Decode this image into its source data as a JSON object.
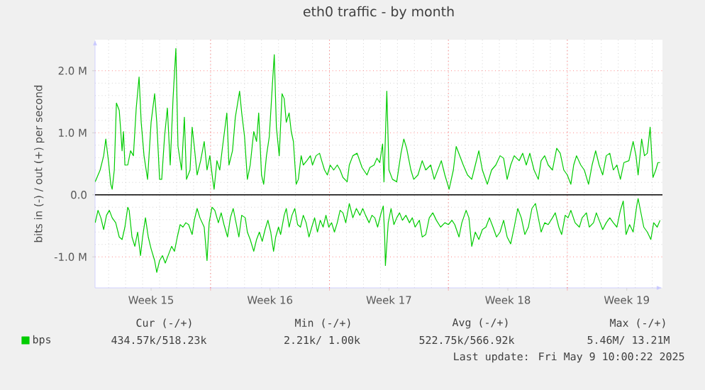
{
  "chart_data": {
    "type": "line",
    "title": "eth0 traffic - by month",
    "ylabel": "bits in (-) / out (+) per second",
    "xlim": [
      "2025-04-06T04:48",
      "2025-05-09T14:24"
    ],
    "ylim": [
      -1.5,
      2.5
    ],
    "xticks": [
      {
        "value": "2025-04-09T12:00",
        "label": "Week 15"
      },
      {
        "value": "2025-04-13",
        "label": null
      },
      {
        "value": "2025-04-16T12:00",
        "label": "Week 16"
      },
      {
        "value": "2025-04-20",
        "label": null
      },
      {
        "value": "2025-04-23T12:00",
        "label": "Week 17"
      },
      {
        "value": "2025-04-27",
        "label": null
      },
      {
        "value": "2025-04-30T12:00",
        "label": "Week 18"
      },
      {
        "value": "2025-05-04",
        "label": null
      },
      {
        "value": "2025-05-07T12:00",
        "label": "Week 19"
      }
    ],
    "yticks": [
      {
        "value": -1,
        "label": "-1.0 M"
      },
      {
        "value": 0,
        "label": "0.0"
      },
      {
        "value": 1,
        "label": "1.0 M"
      },
      {
        "value": 2,
        "label": "2.0 M"
      }
    ],
    "grid": true,
    "legend": "bottom",
    "ref_lines": [
      {
        "axis": "y",
        "value": 0,
        "color": "#000000"
      }
    ],
    "annotations": [
      "Cur (-/+)",
      "Min (-/+)",
      "Avg (-/+)",
      "Max (-/+)",
      "434.57k/518.23k",
      "2.21k/ 1.00k",
      "522.75k/566.92k",
      "5.46M/ 13.21M",
      "Last update: Fri May 9 10:00:22 2025"
    ],
    "series": [
      {
        "name": "bps",
        "color": "#00cc00",
        "x": [
          "2025-04-06T05:00",
          "2025-04-06T12:00",
          "2025-04-06T17:00",
          "2025-04-06T20:00",
          "2025-04-07T00:00",
          "2025-04-07T03:00",
          "2025-04-07T05:00",
          "2025-04-07T08:00",
          "2025-04-07T11:00",
          "2025-04-07T15:00",
          "2025-04-07T17:00",
          "2025-04-07T19:00",
          "2025-04-07T21:00",
          "2025-04-07T23:00",
          "2025-04-08T03:00",
          "2025-04-08T07:00",
          "2025-04-08T11:00",
          "2025-04-08T15:00",
          "2025-04-08T19:00",
          "2025-04-08T22:00",
          "2025-04-09T02:00",
          "2025-04-09T07:00",
          "2025-04-09T12:00",
          "2025-04-09T17:00",
          "2025-04-09T20:00",
          "2025-04-10T00:00",
          "2025-04-10T03:00",
          "2025-04-10T07:00",
          "2025-04-10T11:00",
          "2025-04-10T15:00",
          "2025-04-10T19:00",
          "2025-04-10T23:00",
          "2025-04-11T02:00",
          "2025-04-11T07:00",
          "2025-04-11T11:00",
          "2025-04-11T14:00",
          "2025-04-11T19:00",
          "2025-04-11T22:00",
          "2025-04-12T01:00",
          "2025-04-12T05:00",
          "2025-04-12T10:00",
          "2025-04-12T15:00",
          "2025-04-12T19:00",
          "2025-04-12T23:00",
          "2025-04-13T03:00",
          "2025-04-13T05:00",
          "2025-04-13T09:00",
          "2025-04-13T13:00",
          "2025-04-13T17:00",
          "2025-04-13T23:00",
          "2025-04-14T02:00",
          "2025-04-14T07:00",
          "2025-04-14T11:00",
          "2025-04-14T17:00",
          "2025-04-14T20:00",
          "2025-04-15T00:00",
          "2025-04-15T04:00",
          "2025-04-15T08:00",
          "2025-04-15T13:00",
          "2025-04-15T17:00",
          "2025-04-15T20:00",
          "2025-04-16T00:00",
          "2025-04-16T03:00",
          "2025-04-16T07:00",
          "2025-04-16T11:00",
          "2025-04-16T15:00",
          "2025-04-16T18:00",
          "2025-04-16T21:00",
          "2025-04-17T01:00",
          "2025-04-17T05:00",
          "2025-04-17T08:00",
          "2025-04-17T11:00",
          "2025-04-17T15:00",
          "2025-04-17T18:00",
          "2025-04-17T21:00",
          "2025-04-18T01:00",
          "2025-04-18T04:00",
          "2025-04-18T08:00",
          "2025-04-18T11:00",
          "2025-04-18T16:00",
          "2025-04-18T21:00",
          "2025-04-19T00:00",
          "2025-04-19T05:00",
          "2025-04-19T10:00",
          "2025-04-19T13:00",
          "2025-04-19T17:00",
          "2025-04-19T21:00",
          "2025-04-20T01:00",
          "2025-04-20T06:00",
          "2025-04-20T11:00",
          "2025-04-20T15:00",
          "2025-04-20T19:00",
          "2025-04-21T01:00",
          "2025-04-21T04:00",
          "2025-04-21T09:00",
          "2025-04-21T15:00",
          "2025-04-21T22:00",
          "2025-04-22T05:00",
          "2025-04-22T09:00",
          "2025-04-22T15:00",
          "2025-04-22T19:00",
          "2025-04-22T23:00",
          "2025-04-23T03:00",
          "2025-04-23T05:00",
          "2025-04-23T09:00",
          "2025-04-23T12:00",
          "2025-04-23T17:00",
          "2025-04-23T23:00",
          "2025-04-24T05:00",
          "2025-04-24T09:00",
          "2025-04-24T13:00",
          "2025-04-24T19:00",
          "2025-04-24T23:00",
          "2025-04-25T05:00",
          "2025-04-25T11:00",
          "2025-04-25T16:00",
          "2025-04-25T23:00",
          "2025-04-26T04:00",
          "2025-04-26T09:00",
          "2025-04-26T14:00",
          "2025-04-26T19:00",
          "2025-04-27T01:00",
          "2025-04-27T07:00",
          "2025-04-27T11:00",
          "2025-04-27T16:00",
          "2025-04-27T21:00",
          "2025-04-28T03:00",
          "2025-04-28T09:00",
          "2025-04-28T14:00",
          "2025-04-28T19:00",
          "2025-04-29T00:00",
          "2025-04-29T07:00",
          "2025-04-29T13:00",
          "2025-04-29T19:00",
          "2025-04-30T01:00",
          "2025-04-30T06:00",
          "2025-04-30T11:00",
          "2025-04-30T16:00",
          "2025-04-30T21:00",
          "2025-05-01T04:00",
          "2025-05-01T09:00",
          "2025-05-01T14:00",
          "2025-05-01T19:00",
          "2025-05-02T01:00",
          "2025-05-02T07:00",
          "2025-05-02T11:00",
          "2025-05-02T16:00",
          "2025-05-02T21:00",
          "2025-05-03T03:00",
          "2025-05-03T09:00",
          "2025-05-03T14:00",
          "2025-05-03T19:00",
          "2025-05-04T00:00",
          "2025-05-04T05:00",
          "2025-05-04T09:00",
          "2025-05-04T13:00",
          "2025-05-04T19:00",
          "2025-05-05T00:00",
          "2025-05-05T06:00",
          "2025-05-05T11:00",
          "2025-05-05T16:00",
          "2025-05-05T21:00",
          "2025-05-06T02:00",
          "2025-05-06T07:00",
          "2025-05-06T12:00",
          "2025-05-06T17:00",
          "2025-05-06T22:00",
          "2025-05-07T03:00",
          "2025-05-07T08:00",
          "2025-05-07T15:00",
          "2025-05-07T21:00",
          "2025-05-08T01:00",
          "2025-05-08T04:00",
          "2025-05-08T09:00",
          "2025-05-08T13:00",
          "2025-05-08T17:00",
          "2025-05-08T21:00",
          "2025-05-09T01:00",
          "2025-05-09T05:00",
          "2025-05-09T08:00",
          "2025-05-09T11:00"
        ],
        "values": [
          0.21,
          0.4,
          0.63,
          0.9,
          0.52,
          0.17,
          0.09,
          0.4,
          1.48,
          1.36,
          1.05,
          0.71,
          1.02,
          0.48,
          0.48,
          0.71,
          0.63,
          1.4,
          1.9,
          1.17,
          0.63,
          0.25,
          1.17,
          1.63,
          1.17,
          0.25,
          0.25,
          0.94,
          1.4,
          0.48,
          1.55,
          2.36,
          0.78,
          0.4,
          1.25,
          0.25,
          0.4,
          1.09,
          0.78,
          0.32,
          0.55,
          0.86,
          0.4,
          0.63,
          0.25,
          0.09,
          0.55,
          0.4,
          0.78,
          1.32,
          0.48,
          0.71,
          1.25,
          1.67,
          1.32,
          0.94,
          0.25,
          0.48,
          1.02,
          0.86,
          1.32,
          0.32,
          0.17,
          0.63,
          0.94,
          1.71,
          2.26,
          1.09,
          0.63,
          1.63,
          1.55,
          1.17,
          1.32,
          1.02,
          0.86,
          0.17,
          0.25,
          0.63,
          0.48,
          0.55,
          0.63,
          0.48,
          0.63,
          0.67,
          0.55,
          0.4,
          0.32,
          0.48,
          0.4,
          0.48,
          0.4,
          0.28,
          0.21,
          0.48,
          0.63,
          0.67,
          0.44,
          0.32,
          0.44,
          0.48,
          0.59,
          0.52,
          0.82,
          0.21,
          1.67,
          0.4,
          0.25,
          0.21,
          0.67,
          0.9,
          0.75,
          0.4,
          0.25,
          0.32,
          0.55,
          0.4,
          0.48,
          0.25,
          0.4,
          0.55,
          0.32,
          0.09,
          0.4,
          0.78,
          0.63,
          0.48,
          0.32,
          0.25,
          0.48,
          0.71,
          0.4,
          0.17,
          0.4,
          0.48,
          0.63,
          0.59,
          0.25,
          0.48,
          0.63,
          0.55,
          0.67,
          0.48,
          0.67,
          0.4,
          0.25,
          0.55,
          0.63,
          0.48,
          0.4,
          0.75,
          0.67,
          0.4,
          0.32,
          0.17,
          0.48,
          0.63,
          0.48,
          0.4,
          0.17,
          0.48,
          0.71,
          0.48,
          0.32,
          0.63,
          0.67,
          0.4,
          0.48,
          0.25,
          0.52,
          0.55,
          0.86,
          0.63,
          0.32,
          0.9,
          0.63,
          0.67,
          1.09,
          0.28,
          0.4,
          0.52,
          0.52
        ]
      },
      {
        "color": "#00cc00",
        "x": [
          "2025-04-06T05:00",
          "2025-04-06T09:00",
          "2025-04-06T13:00",
          "2025-04-06T17:00",
          "2025-04-06T21:00",
          "2025-04-07T01:00",
          "2025-04-07T05:00",
          "2025-04-07T10:00",
          "2025-04-07T15:00",
          "2025-04-07T19:00",
          "2025-04-07T23:00",
          "2025-04-08T03:00",
          "2025-04-08T05:00",
          "2025-04-08T09:00",
          "2025-04-08T13:00",
          "2025-04-08T17:00",
          "2025-04-08T21:00",
          "2025-04-09T00:00",
          "2025-04-09T04:00",
          "2025-04-09T08:00",
          "2025-04-09T12:00",
          "2025-04-09T17:00",
          "2025-04-09T20:00",
          "2025-04-10T00:00",
          "2025-04-10T04:00",
          "2025-04-10T08:00",
          "2025-04-10T13:00",
          "2025-04-10T17:00",
          "2025-04-10T21:00",
          "2025-04-11T01:00",
          "2025-04-11T05:00",
          "2025-04-11T09:00",
          "2025-04-11T13:00",
          "2025-04-11T17:00",
          "2025-04-11T22:00",
          "2025-04-12T01:00",
          "2025-04-12T05:00",
          "2025-04-12T09:00",
          "2025-04-12T15:00",
          "2025-04-12T19:00",
          "2025-04-12T22:00",
          "2025-04-13T02:00",
          "2025-04-13T06:00",
          "2025-04-13T11:00",
          "2025-04-13T15:00",
          "2025-04-13T19:00",
          "2025-04-14T00:00",
          "2025-04-14T04:00",
          "2025-04-14T08:00",
          "2025-04-14T12:00",
          "2025-04-14T16:00",
          "2025-04-14T20:00",
          "2025-04-15T01:00",
          "2025-04-15T04:00",
          "2025-04-15T08:00",
          "2025-04-15T13:00",
          "2025-04-15T17:00",
          "2025-04-15T21:00",
          "2025-04-16T01:00",
          "2025-04-16T05:00",
          "2025-04-16T09:00",
          "2025-04-16T13:00",
          "2025-04-16T17:00",
          "2025-04-16T20:00",
          "2025-04-17T00:00",
          "2025-04-17T03:00",
          "2025-04-17T08:00",
          "2025-04-17T11:00",
          "2025-04-17T15:00",
          "2025-04-17T19:00",
          "2025-04-17T23:00",
          "2025-04-18T03:00",
          "2025-04-18T07:00",
          "2025-04-18T11:00",
          "2025-04-18T15:00",
          "2025-04-18T19:00",
          "2025-04-18T23:00",
          "2025-04-19T03:00",
          "2025-04-19T07:00",
          "2025-04-19T11:00",
          "2025-04-19T15:00",
          "2025-04-19T19:00",
          "2025-04-19T23:00",
          "2025-04-20T03:00",
          "2025-04-20T07:00",
          "2025-04-20T11:00",
          "2025-04-20T15:00",
          "2025-04-20T19:00",
          "2025-04-20T23:00",
          "2025-04-21T04:00",
          "2025-04-21T09:00",
          "2025-04-21T14:00",
          "2025-04-21T19:00",
          "2025-04-21T23:00",
          "2025-04-22T03:00",
          "2025-04-22T08:00",
          "2025-04-22T12:00",
          "2025-04-22T16:00",
          "2025-04-22T20:00",
          "2025-04-23T01:00",
          "2025-04-23T04:00",
          "2025-04-23T06:00",
          "2025-04-23T07:00",
          "2025-04-23T11:00",
          "2025-04-23T15:00",
          "2025-04-23T19:00",
          "2025-04-23T23:00",
          "2025-04-24T03:00",
          "2025-04-24T07:00",
          "2025-04-24T12:00",
          "2025-04-24T17:00",
          "2025-04-24T21:00",
          "2025-04-25T01:00",
          "2025-04-25T07:00",
          "2025-04-25T11:00",
          "2025-04-25T16:00",
          "2025-04-25T21:00",
          "2025-04-26T02:00",
          "2025-04-26T07:00",
          "2025-04-26T13:00",
          "2025-04-26T19:00",
          "2025-04-27T00:00",
          "2025-04-27T05:00",
          "2025-04-27T09:00",
          "2025-04-27T15:00",
          "2025-04-27T19:00",
          "2025-04-28T01:00",
          "2025-04-28T05:00",
          "2025-04-28T09:00",
          "2025-04-28T14:00",
          "2025-04-28T19:00",
          "2025-04-29T00:00",
          "2025-04-29T05:00",
          "2025-04-29T10:00",
          "2025-04-29T15:00",
          "2025-04-29T20:00",
          "2025-04-30T01:00",
          "2025-04-30T06:00",
          "2025-04-30T11:00",
          "2025-04-30T16:00",
          "2025-04-30T21:00",
          "2025-05-01T02:00",
          "2025-05-01T07:00",
          "2025-05-01T12:00",
          "2025-05-01T17:00",
          "2025-05-01T22:00",
          "2025-05-02T03:00",
          "2025-05-02T07:00",
          "2025-05-02T11:00",
          "2025-05-02T16:00",
          "2025-05-02T21:00",
          "2025-05-03T03:00",
          "2025-05-03T07:00",
          "2025-05-03T12:00",
          "2025-05-03T16:00",
          "2025-05-03T21:00",
          "2025-05-04T01:00",
          "2025-05-04T05:00",
          "2025-05-04T11:00",
          "2025-05-04T17:00",
          "2025-05-04T21:00",
          "2025-05-05T03:00",
          "2025-05-05T07:00",
          "2025-05-05T13:00",
          "2025-05-05T17:00",
          "2025-05-05T21:00",
          "2025-05-06T02:00",
          "2025-05-06T07:00",
          "2025-05-06T12:00",
          "2025-05-06T17:00",
          "2025-05-06T22:00",
          "2025-05-07T03:00",
          "2025-05-07T07:00",
          "2025-05-07T11:00",
          "2025-05-07T16:00",
          "2025-05-07T21:00",
          "2025-05-08T02:00",
          "2025-05-08T04:00",
          "2025-05-08T08:00",
          "2025-05-08T12:00",
          "2025-05-08T17:00",
          "2025-05-08T22:00",
          "2025-05-09T02:00",
          "2025-05-09T07:00",
          "2025-05-09T11:00"
        ],
        "values": [
          -0.45,
          -0.25,
          -0.37,
          -0.56,
          -0.33,
          -0.25,
          -0.37,
          -0.45,
          -0.68,
          -0.72,
          -0.52,
          -0.2,
          -0.25,
          -0.68,
          -0.83,
          -0.6,
          -0.98,
          -0.68,
          -0.37,
          -0.68,
          -0.87,
          -1.06,
          -1.25,
          -1.06,
          -0.98,
          -1.1,
          -0.95,
          -0.83,
          -0.91,
          -0.68,
          -0.48,
          -0.52,
          -0.45,
          -0.48,
          -0.64,
          -0.41,
          -0.22,
          -0.37,
          -0.52,
          -1.06,
          -0.45,
          -0.2,
          -0.25,
          -0.45,
          -0.29,
          -0.48,
          -0.68,
          -0.37,
          -0.22,
          -0.45,
          -0.68,
          -0.33,
          -0.37,
          -0.6,
          -0.72,
          -0.91,
          -0.72,
          -0.6,
          -0.75,
          -0.56,
          -0.41,
          -0.6,
          -0.91,
          -0.68,
          -0.52,
          -0.64,
          -0.33,
          -0.22,
          -0.52,
          -0.33,
          -0.22,
          -0.48,
          -0.52,
          -0.33,
          -0.45,
          -0.68,
          -0.52,
          -0.37,
          -0.6,
          -0.41,
          -0.52,
          -0.33,
          -0.52,
          -0.45,
          -0.6,
          -0.45,
          -0.25,
          -0.29,
          -0.45,
          -0.14,
          -0.37,
          -0.22,
          -0.33,
          -0.22,
          -0.33,
          -0.45,
          -0.33,
          -0.37,
          -0.52,
          -0.29,
          -0.18,
          -0.68,
          -1.14,
          -0.45,
          -0.22,
          -0.48,
          -0.37,
          -0.29,
          -0.41,
          -0.33,
          -0.45,
          -0.37,
          -0.52,
          -0.41,
          -0.68,
          -0.64,
          -0.37,
          -0.29,
          -0.41,
          -0.52,
          -0.45,
          -0.48,
          -0.41,
          -0.48,
          -0.68,
          -0.45,
          -0.25,
          -0.37,
          -0.83,
          -0.6,
          -0.72,
          -0.56,
          -0.52,
          -0.37,
          -0.52,
          -0.68,
          -0.6,
          -0.41,
          -0.68,
          -0.79,
          -0.52,
          -0.22,
          -0.37,
          -0.64,
          -0.52,
          -0.22,
          -0.14,
          -0.37,
          -0.6,
          -0.45,
          -0.48,
          -0.37,
          -0.29,
          -0.52,
          -0.64,
          -0.33,
          -0.37,
          -0.25,
          -0.45,
          -0.52,
          -0.37,
          -0.29,
          -0.52,
          -0.45,
          -0.29,
          -0.41,
          -0.56,
          -0.45,
          -0.37,
          -0.45,
          -0.52,
          -0.25,
          -0.1,
          -0.64,
          -0.48,
          -0.6,
          -0.18,
          -0.06,
          -0.29,
          -0.52,
          -0.6,
          -0.72,
          -0.45,
          -0.52,
          -0.41
        ]
      }
    ]
  }
}
